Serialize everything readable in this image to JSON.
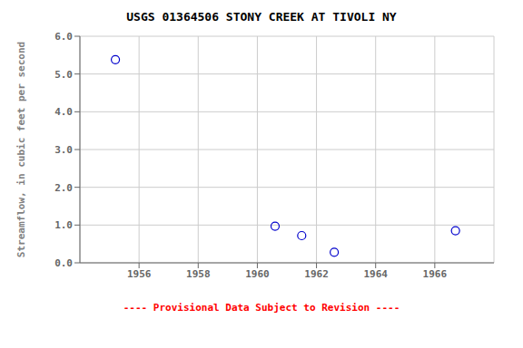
{
  "chart_data": {
    "type": "scatter",
    "title": "USGS 01364506 STONY CREEK AT TIVOLI NY",
    "ylabel": "Streamflow, in cubic feet per second",
    "x": [
      1955.2,
      1960.6,
      1961.5,
      1962.6,
      1966.7
    ],
    "values": [
      5.38,
      0.97,
      0.72,
      0.28,
      0.85
    ],
    "color": "#0000CC",
    "marker": "circle",
    "xlim": [
      1954,
      1968
    ],
    "xticks": [
      1956,
      1958,
      1960,
      1962,
      1964,
      1966
    ],
    "ylim": [
      0.0,
      6.0
    ],
    "yticks": [
      {
        "value": 0,
        "label": "0.0"
      },
      {
        "value": 1,
        "label": "1.0"
      },
      {
        "value": 2,
        "label": "2.0"
      },
      {
        "value": 3,
        "label": "3.0"
      },
      {
        "value": 4,
        "label": "4.0"
      },
      {
        "value": 5,
        "label": "5.0"
      },
      {
        "value": 6,
        "label": "6.0"
      }
    ],
    "grid": true,
    "annotations": [
      {
        "text": "---- Provisional Data Subject to Revision ----",
        "color": "#ff0000"
      }
    ]
  }
}
